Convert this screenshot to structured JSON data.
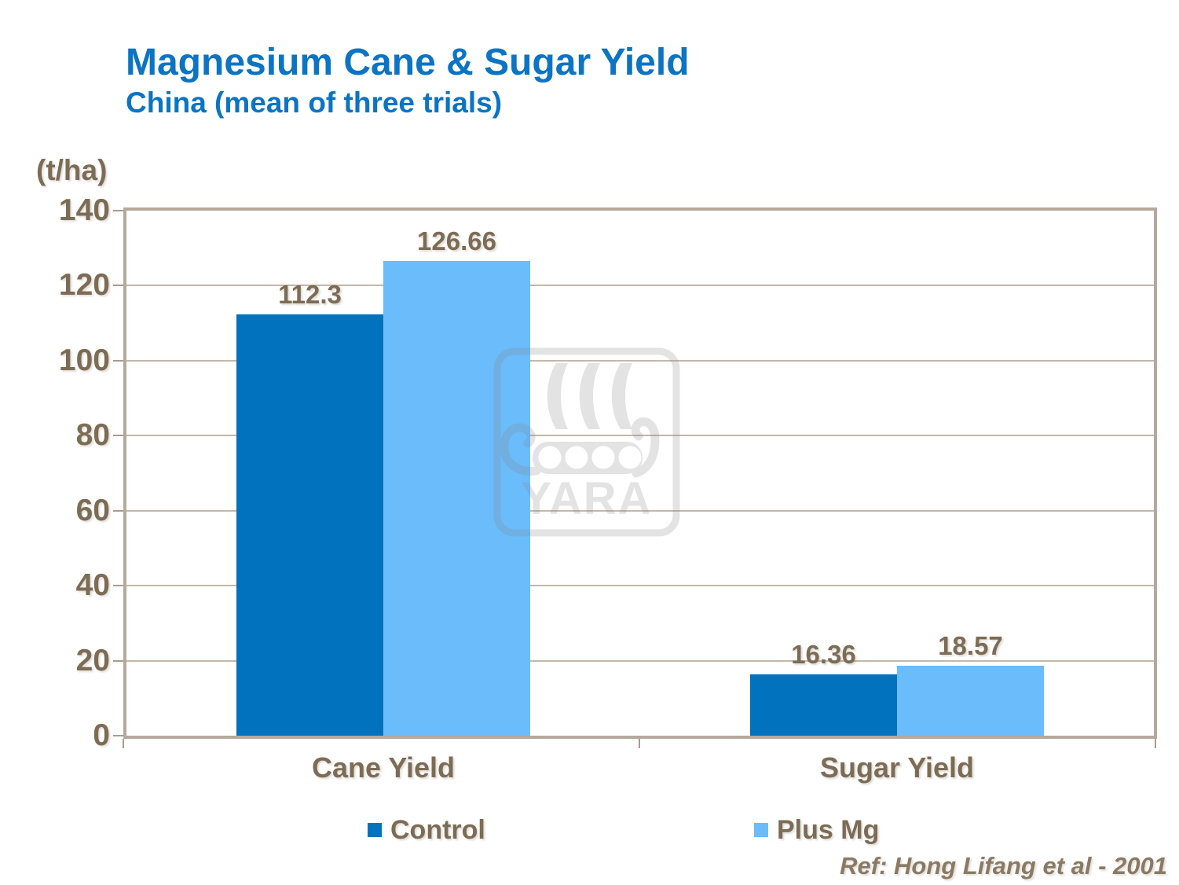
{
  "chart_data": {
    "type": "bar",
    "title": "Magnesium Cane & Sugar Yield",
    "subtitle": "China (mean of three trials)",
    "unit_label": "(t/ha)",
    "categories": [
      "Cane Yield",
      "Sugar Yield"
    ],
    "series": [
      {
        "name": "Control",
        "color": "#0072BE",
        "values": [
          112.3,
          16.36
        ],
        "value_labels": [
          "112.3",
          "16.36"
        ]
      },
      {
        "name": "Plus Mg",
        "color": "#6BBCFB",
        "values": [
          126.66,
          18.57
        ],
        "value_labels": [
          "126.66",
          "18.57"
        ]
      }
    ],
    "ylim": [
      0,
      140
    ],
    "yticks": [
      0,
      20,
      40,
      60,
      80,
      100,
      120,
      140
    ],
    "grid": "horizontal-only",
    "legend_position": "bottom"
  },
  "watermark": {
    "text": "YARA"
  },
  "footer": {
    "reference": "Ref: Hong Lifang et al - 2001"
  },
  "colors": {
    "title_blue": "#0B74C4",
    "text_brown": "#7D6C55",
    "control_bar": "#0072BE",
    "plus_mg_bar": "#6BBCFB",
    "plot_border": "#B5A99D",
    "gridline": "#C4B8AA",
    "watermark_gray": "#848484"
  }
}
